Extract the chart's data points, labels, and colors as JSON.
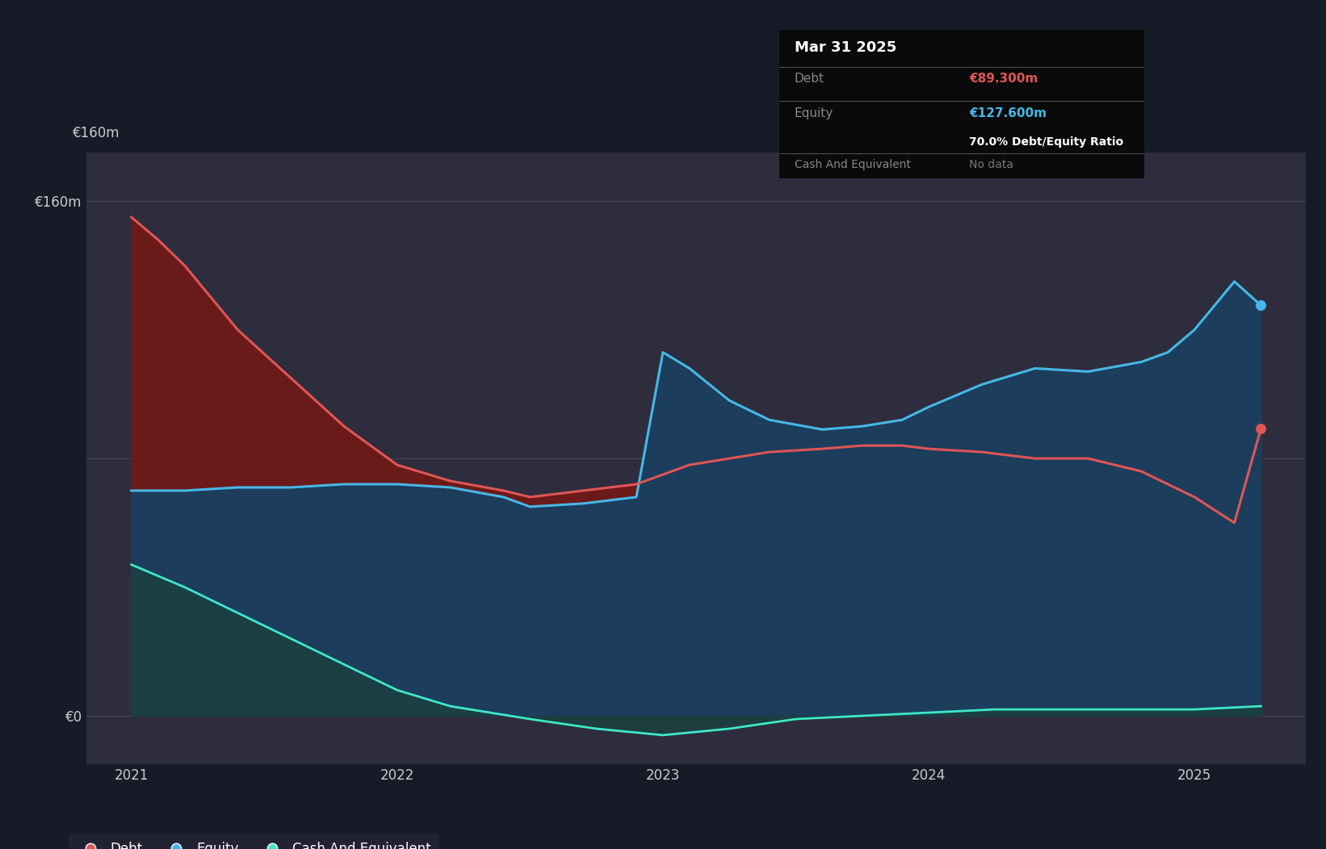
{
  "background_color": "#161b27",
  "plot_bg_color": "#2e2d3d",
  "outer_bg_color": "#161b27",
  "grid_color": "#4a4860",
  "ylim": [
    -15,
    175
  ],
  "xlim": [
    2020.83,
    2025.42
  ],
  "ytick_labels": [
    "€0",
    "€160m"
  ],
  "ytick_values": [
    0,
    160
  ],
  "xtick_labels": [
    "2021",
    "2022",
    "2023",
    "2024",
    "2025"
  ],
  "xtick_values": [
    2021,
    2022,
    2023,
    2024,
    2025
  ],
  "tooltip": {
    "date": "Mar 31 2025",
    "debt_label": "Debt",
    "debt_value": "€89.300m",
    "equity_label": "Equity",
    "equity_value": "€127.600m",
    "ratio": "70.0% Debt/Equity Ratio",
    "cash_label": "Cash And Equivalent",
    "cash_value": "No data"
  },
  "debt_color": "#e05555",
  "debt_fill_color": "#6b1a1a",
  "equity_color": "#45b8e8",
  "equity_fill_color": "#1c3d5c",
  "cash_color": "#3de8c8",
  "cash_fill_color": "#1a4040",
  "legend_bg": "#252535",
  "debt_x": [
    2021.0,
    2021.1,
    2021.2,
    2021.4,
    2021.6,
    2021.8,
    2022.0,
    2022.2,
    2022.4,
    2022.5,
    2022.7,
    2022.9,
    2023.0,
    2023.1,
    2023.25,
    2023.4,
    2023.6,
    2023.75,
    2023.9,
    2024.0,
    2024.2,
    2024.4,
    2024.6,
    2024.8,
    2024.9,
    2025.0,
    2025.15,
    2025.25
  ],
  "debt_y": [
    155,
    148,
    140,
    120,
    105,
    90,
    78,
    73,
    70,
    68,
    70,
    72,
    75,
    78,
    80,
    82,
    83,
    84,
    84,
    83,
    82,
    80,
    80,
    76,
    72,
    68,
    60,
    89.3
  ],
  "equity_x": [
    2021.0,
    2021.1,
    2021.2,
    2021.4,
    2021.6,
    2021.8,
    2022.0,
    2022.2,
    2022.4,
    2022.5,
    2022.7,
    2022.9,
    2023.0,
    2023.1,
    2023.25,
    2023.4,
    2023.6,
    2023.75,
    2023.9,
    2024.0,
    2024.2,
    2024.4,
    2024.6,
    2024.8,
    2024.9,
    2025.0,
    2025.15,
    2025.25
  ],
  "equity_y": [
    70,
    70,
    70,
    71,
    71,
    72,
    72,
    71,
    68,
    65,
    66,
    68,
    113,
    108,
    98,
    92,
    89,
    90,
    92,
    96,
    103,
    108,
    107,
    110,
    113,
    120,
    135,
    127.6
  ],
  "cash_x": [
    2021.0,
    2021.2,
    2021.5,
    2021.8,
    2022.0,
    2022.2,
    2022.5,
    2022.75,
    2023.0,
    2023.25,
    2023.5,
    2023.75,
    2024.0,
    2024.25,
    2024.5,
    2024.75,
    2025.0,
    2025.25
  ],
  "cash_y": [
    47,
    40,
    28,
    16,
    8,
    3,
    -1,
    -4,
    -6,
    -4,
    -1,
    0,
    1,
    2,
    2,
    2,
    2,
    3
  ]
}
